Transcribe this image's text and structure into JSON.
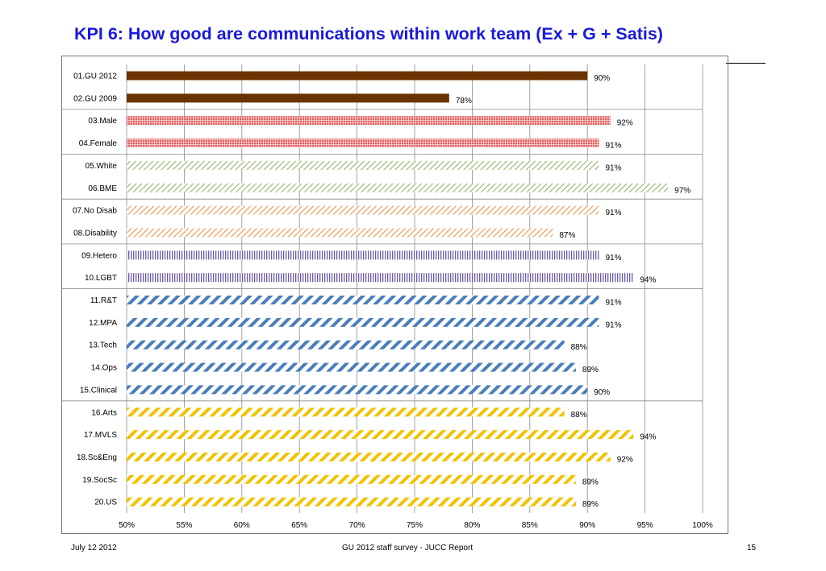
{
  "slide": {
    "title": "KPI 6: How good are communications within work team (Ex + G + Satis)",
    "footer_left": "July 12 2012",
    "footer_center": "GU 2012 staff survey -  JUCC Report",
    "footer_right": "15"
  },
  "chart_data": {
    "type": "bar",
    "orientation": "horizontal",
    "title": "KPI 6: How good are communications within work team (Ex + G + Satis)",
    "xlabel": "",
    "ylabel": "",
    "xlim": [
      0.5,
      1.0
    ],
    "xticks": [
      "50%",
      "55%",
      "60%",
      "65%",
      "70%",
      "75%",
      "80%",
      "85%",
      "90%",
      "95%",
      "100%"
    ],
    "grid": "vertical",
    "categories": [
      "01.GU 2012",
      "02.GU 2009",
      "03.Male",
      "04.Female",
      "05.White",
      "06.BME",
      "07.No Disab",
      "08.Disability",
      "09.Hetero",
      "10.LGBT",
      "11.R&T",
      "12.MPA",
      "13.Tech",
      "14.Ops",
      "15.Clinical",
      "16.Arts",
      "17.MVLS",
      "18.Sc&Eng",
      "19.SocSc",
      "20.US"
    ],
    "values": [
      0.9,
      0.78,
      0.92,
      0.91,
      0.91,
      0.97,
      0.91,
      0.87,
      0.91,
      0.94,
      0.91,
      0.91,
      0.88,
      0.89,
      0.9,
      0.88,
      0.94,
      0.92,
      0.89,
      0.89
    ],
    "value_labels": [
      "90%",
      "78%",
      "92%",
      "91%",
      "91%",
      "97%",
      "91%",
      "87%",
      "91%",
      "94%",
      "91%",
      "91%",
      "88%",
      "89%",
      "90%",
      "88%",
      "94%",
      "92%",
      "89%",
      "89%"
    ],
    "groups": [
      {
        "members": [
          0,
          1
        ],
        "color": "#6b3300",
        "pattern": "solid"
      },
      {
        "members": [
          2,
          3
        ],
        "color": "#e25a5a",
        "pattern": "dots"
      },
      {
        "members": [
          4,
          5
        ],
        "color": "#9bb873",
        "pattern": "thin-diagonal"
      },
      {
        "members": [
          6,
          7
        ],
        "color": "#ef9a5a",
        "pattern": "thin-diagonal"
      },
      {
        "members": [
          8,
          9
        ],
        "color": "#6b5aa6",
        "pattern": "vertical"
      },
      {
        "members": [
          10,
          11,
          12,
          13,
          14
        ],
        "color": "#4a7ebb",
        "pattern": "wide-diagonal"
      },
      {
        "members": [
          15,
          16,
          17,
          18,
          19
        ],
        "color": "#f2c200",
        "pattern": "wide-diagonal"
      }
    ]
  }
}
